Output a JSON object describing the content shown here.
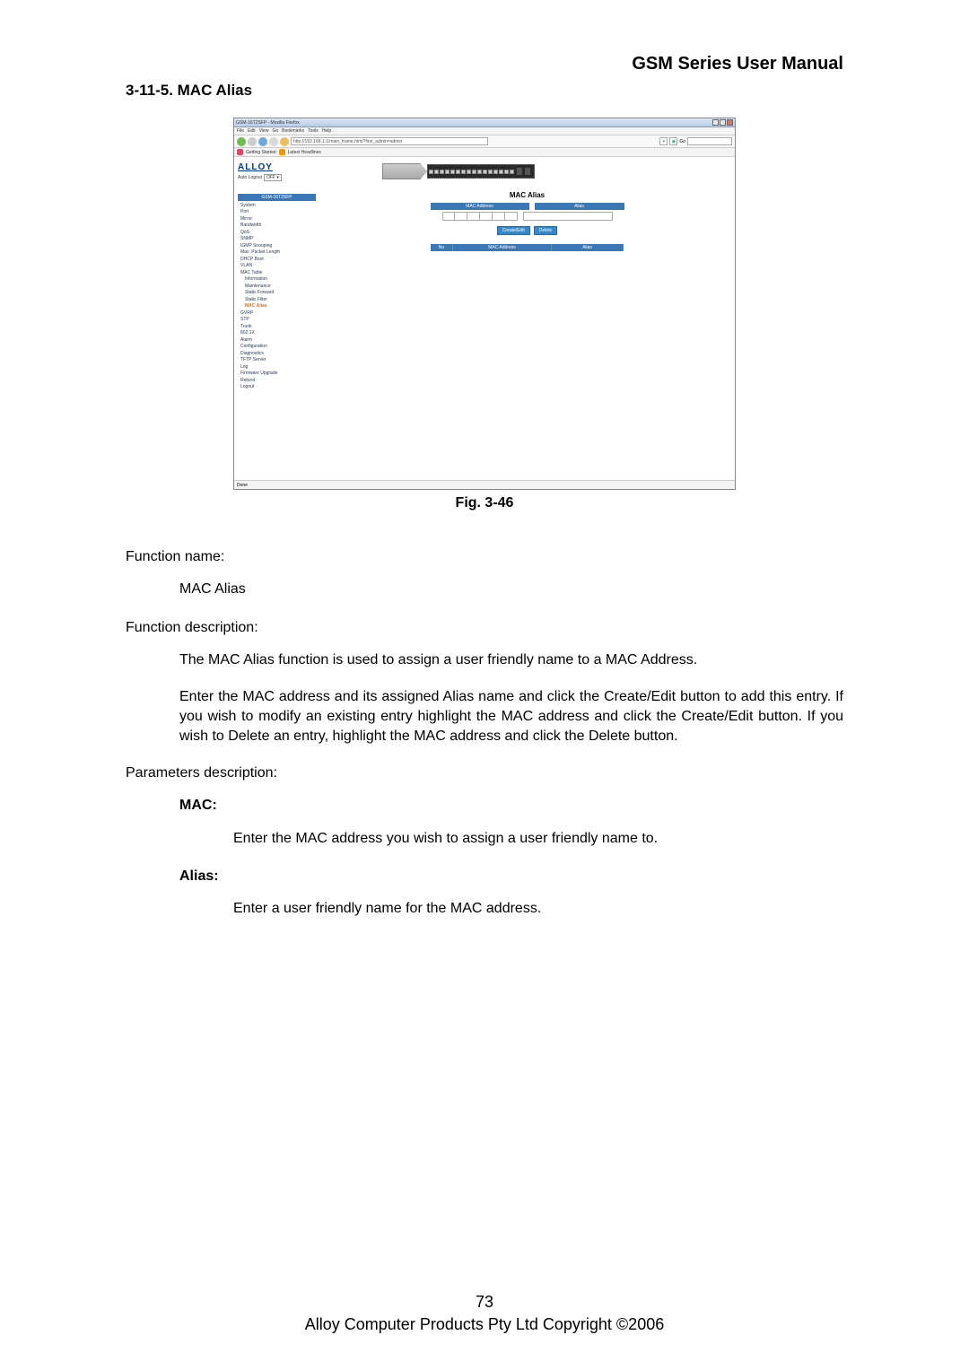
{
  "header": {
    "title": "GSM Series User Manual"
  },
  "section": {
    "number_title": "3-11-5. MAC Alias"
  },
  "screenshot": {
    "window_title": "GSM-16T2SFP - Mozilla Firefox",
    "menus": [
      "File",
      "Edit",
      "View",
      "Go",
      "Bookmarks",
      "Tools",
      "Help"
    ],
    "url": "http://192.168.1.1/main_frame.html?first_admin=admin",
    "bookmarks": [
      "Getting Started",
      "Latest Headlines"
    ],
    "logo": "ALLOY",
    "auto_logout_label": "Auto Logout",
    "auto_logout_value": "OFF",
    "model": "GSM-16T2SFP",
    "nav": [
      {
        "label": "System",
        "sub": false
      },
      {
        "label": "Port",
        "sub": false
      },
      {
        "label": "Mirror",
        "sub": false
      },
      {
        "label": "Bandwidth",
        "sub": false
      },
      {
        "label": "QoS",
        "sub": false
      },
      {
        "label": "SNMP",
        "sub": false
      },
      {
        "label": "IGMP Snooping",
        "sub": false
      },
      {
        "label": "Max. Packet Length",
        "sub": false
      },
      {
        "label": "DHCP Boot",
        "sub": false
      },
      {
        "label": "VLAN",
        "sub": false
      },
      {
        "label": "MAC Table",
        "sub": false
      },
      {
        "label": "Information",
        "sub": true
      },
      {
        "label": "Maintenance",
        "sub": true
      },
      {
        "label": "Static Forward",
        "sub": true
      },
      {
        "label": "Static Filter",
        "sub": true
      },
      {
        "label": "MAC Alias",
        "sub": true,
        "active": true
      },
      {
        "label": "GVRP",
        "sub": false
      },
      {
        "label": "STP",
        "sub": false
      },
      {
        "label": "Trunk",
        "sub": false
      },
      {
        "label": "802.1X",
        "sub": false
      },
      {
        "label": "Alarm",
        "sub": false
      },
      {
        "label": "Configuration",
        "sub": false
      },
      {
        "label": "Diagnostics",
        "sub": false
      },
      {
        "label": "TFTP Server",
        "sub": false
      },
      {
        "label": "Log",
        "sub": false
      },
      {
        "label": "Firmware Upgrade",
        "sub": false
      },
      {
        "label": "Reboot",
        "sub": false
      },
      {
        "label": "Logout",
        "sub": false
      }
    ],
    "panel_title": "MAC Alias",
    "form": {
      "mac_header": "MAC Address",
      "alias_header": "Alias"
    },
    "buttons": {
      "create": "Create/Edit",
      "delete": "Delete"
    },
    "list": {
      "col_no": "No",
      "col_mac": "MAC Address",
      "col_alias": "Alias"
    },
    "status": "Done"
  },
  "figure_caption": "Fig. 3-46",
  "body": {
    "fn_name_label": "Function name:",
    "fn_name_value": "MAC Alias",
    "fn_desc_label": "Function description:",
    "fn_desc_p1": "The MAC Alias function is used to assign a user friendly name to a MAC Address.",
    "fn_desc_p2": "Enter the MAC address and its assigned Alias name and click the Create/Edit button to add this entry. If you wish to modify an existing entry highlight the MAC address and click the Create/Edit button. If you wish to Delete an entry, highlight the MAC address and click the Delete button.",
    "params_label": "Parameters description:",
    "mac_label": "MAC:",
    "mac_desc": "Enter the MAC address you wish to assign a user friendly name to.",
    "alias_label": "Alias:",
    "alias_desc": "Enter a user friendly name for the MAC address."
  },
  "footer": {
    "page": "73",
    "copyright": "Alloy Computer Products Pty Ltd Copyright ©2006"
  }
}
